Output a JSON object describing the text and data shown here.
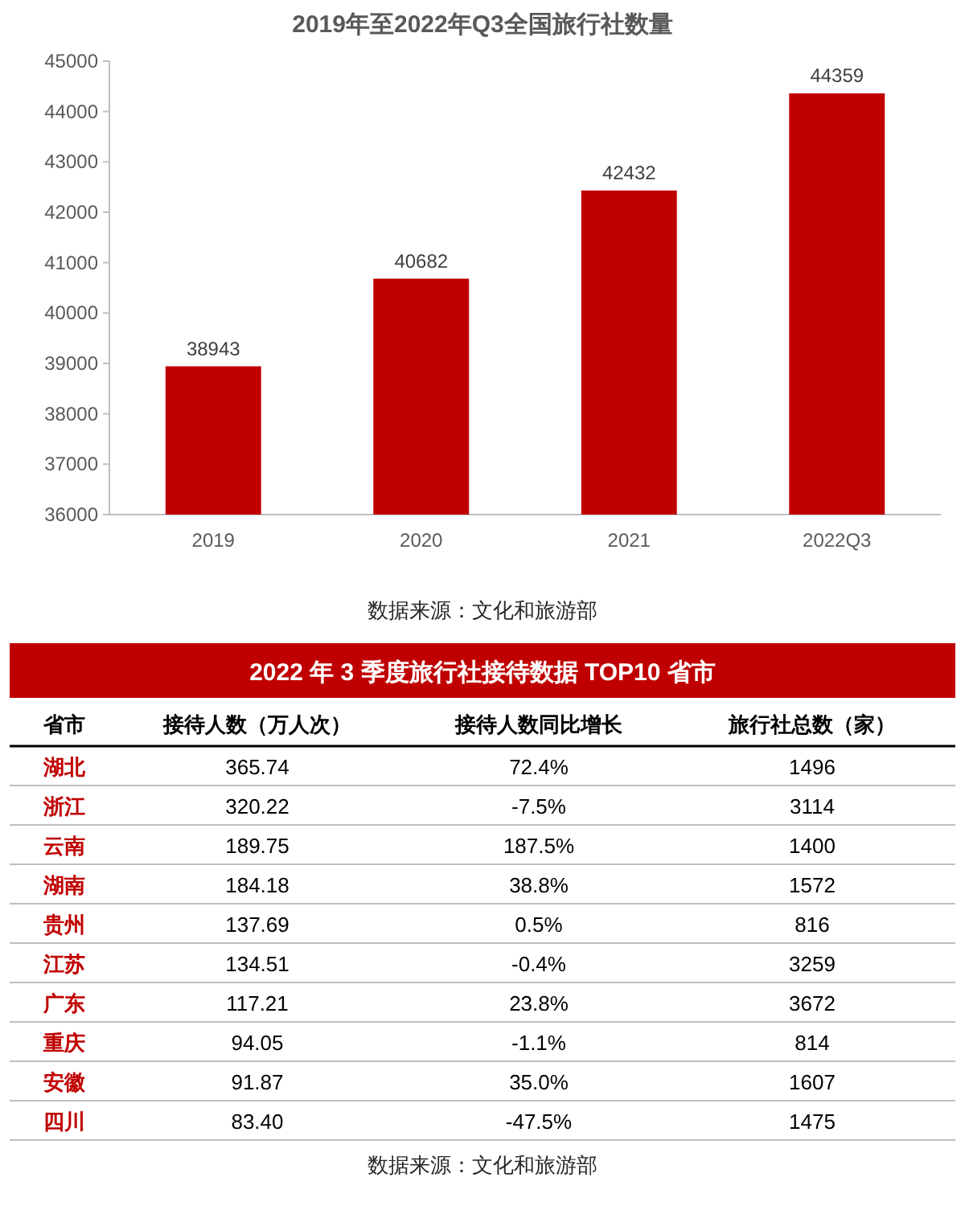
{
  "chart_data": [
    {
      "type": "bar",
      "title": "2019年至2022年Q3全国旅行社数量",
      "categories": [
        "2019",
        "2020",
        "2021",
        "2022Q3"
      ],
      "values": [
        38943,
        40682,
        42432,
        44359
      ],
      "color": "#c00000",
      "ylim": [
        36000,
        45000
      ],
      "yticks": [
        36000,
        37000,
        38000,
        39000,
        40000,
        41000,
        42000,
        43000,
        44000,
        45000
      ],
      "data_labels": true,
      "grid": false,
      "annotations": [
        "数据来源：文化和旅游部"
      ]
    },
    {
      "type": "other",
      "title": "2022 年 3 季度旅行社接待数据 TOP10 省市",
      "color": "#c00000",
      "ylabel": "省市",
      "categories": [
        "接待人数（万人次）",
        "接待人数同比增长",
        "旅行社总数（家）"
      ],
      "y_categories": [
        "湖北",
        "浙江",
        "云南",
        "湖南",
        "贵州",
        "江苏",
        "广东",
        "重庆",
        "安徽",
        "四川"
      ],
      "cell_labels": [
        [
          "365.74",
          "72.4%",
          "1496"
        ],
        [
          "320.22",
          "-7.5%",
          "3114"
        ],
        [
          "189.75",
          "187.5%",
          "1400"
        ],
        [
          "184.18",
          "38.8%",
          "1572"
        ],
        [
          "137.69",
          "0.5%",
          "816"
        ],
        [
          "134.51",
          "-0.4%",
          "3259"
        ],
        [
          "117.21",
          "23.8%",
          "3672"
        ],
        [
          "94.05",
          "-1.1%",
          "814"
        ],
        [
          "91.87",
          "35.0%",
          "1607"
        ],
        [
          "83.40",
          "-47.5%",
          "1475"
        ]
      ],
      "annotations": [
        "数据来源：文化和旅游部"
      ]
    }
  ]
}
